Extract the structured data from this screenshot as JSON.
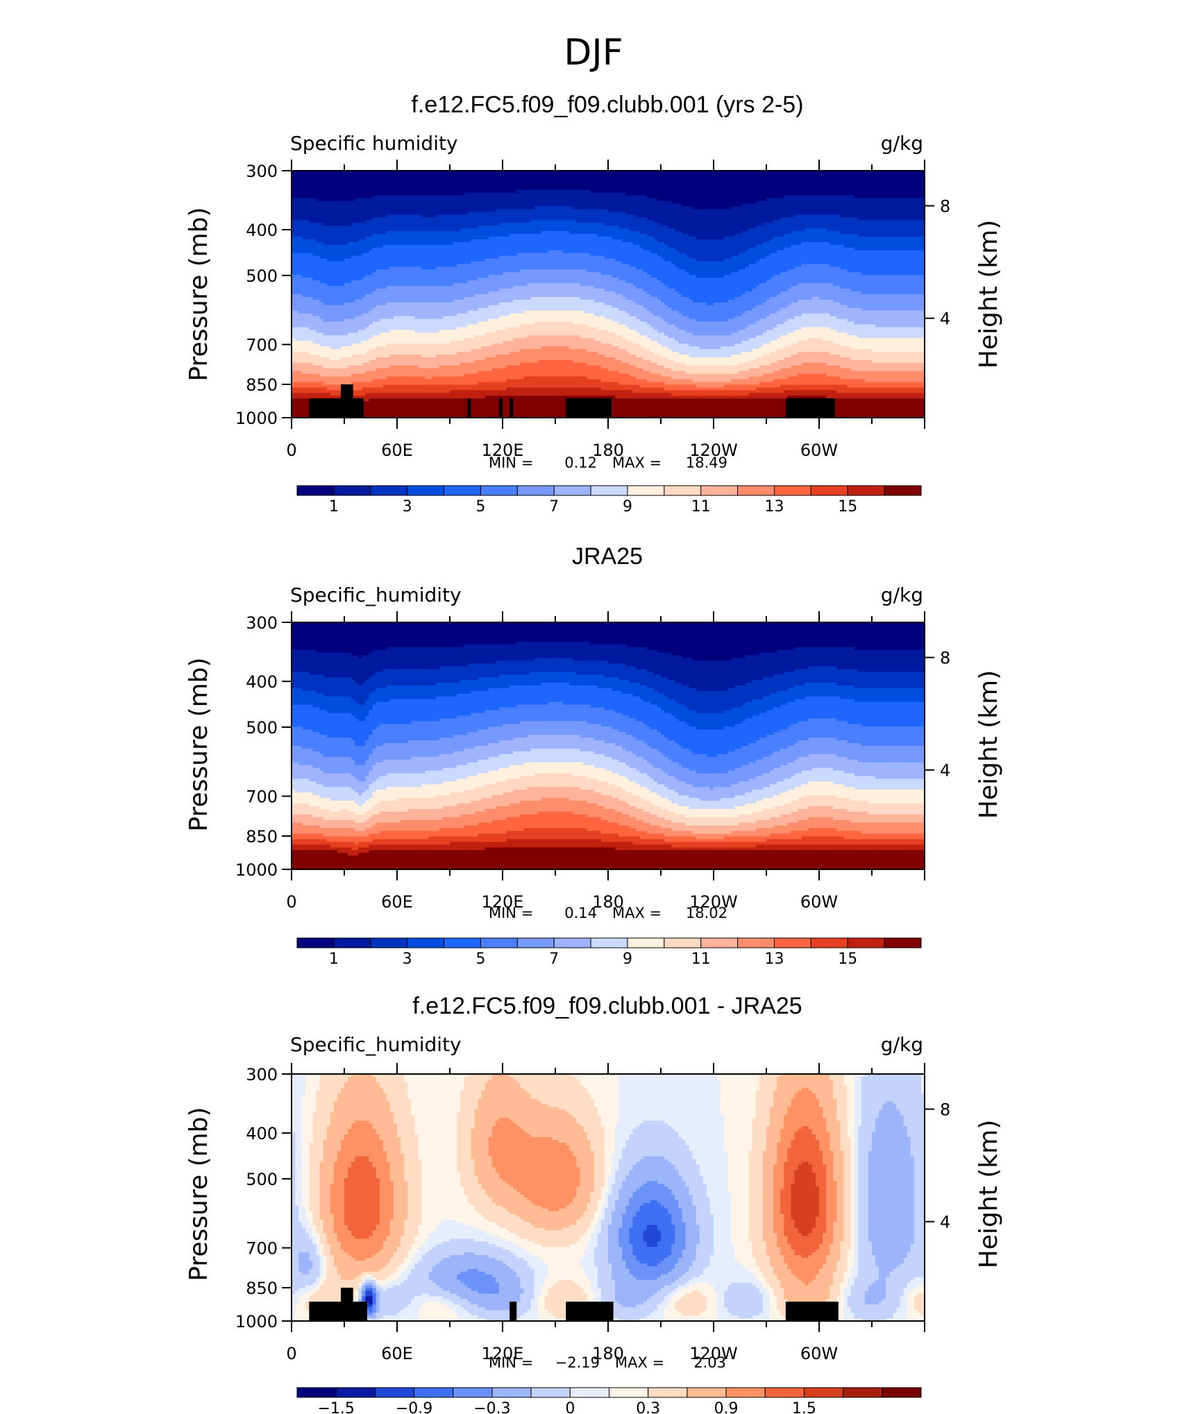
{
  "figure": {
    "season": "DJF",
    "colors": {
      "abs": [
        "#00007f",
        "#001a9f",
        "#0033bf",
        "#004ddf",
        "#1f66ff",
        "#4a80ff",
        "#7599ff",
        "#a0b3ff",
        "#cbd9ff",
        "#fff0dd",
        "#ffd9c4",
        "#ffb39a",
        "#ff8c6a",
        "#ff6640",
        "#e64020",
        "#bf2010",
        "#800000"
      ],
      "diff": [
        "#00007f",
        "#0a1aa3",
        "#2147d6",
        "#3f6ff2",
        "#6b93f7",
        "#9cb5fa",
        "#c4d3fb",
        "#e6eefd",
        "#fff4e8",
        "#ffdcc4",
        "#ffbb94",
        "#ff9263",
        "#f2643a",
        "#d6401f",
        "#a81f0c",
        "#7a0000"
      ]
    }
  },
  "chart_data": [
    {
      "type": "heatmap",
      "title": "f.e12.FC5.f09_f09.clubb.001 (yrs 2-5)",
      "left_string": "Specific humidity",
      "right_string": "g/kg",
      "ylabel": "Pressure (mb)",
      "ylabel_right": "Height (km)",
      "x_ticks": [
        "0",
        "60E",
        "120E",
        "180",
        "120W",
        "60W"
      ],
      "y_ticks": [
        "300",
        "400",
        "500",
        "700",
        "850",
        "1000"
      ],
      "height_ticks": [
        "8",
        "4"
      ],
      "ylim": [
        1000,
        300
      ],
      "xlim": [
        0,
        360
      ],
      "stats": {
        "min_label": "MIN =",
        "min": "0.12",
        "max_label": "MAX =",
        "max": "18.49"
      },
      "colorbar_labels": [
        "1",
        "3",
        "5",
        "7",
        "9",
        "11",
        "13",
        "15"
      ],
      "contour_levels": [
        0.5,
        1,
        1.5,
        2,
        3,
        4,
        5,
        6,
        7,
        8,
        9,
        10,
        11,
        12,
        13,
        14,
        15
      ],
      "topography": [
        {
          "x0": 10,
          "x1": 41,
          "p": 910
        },
        {
          "x0": 28,
          "x1": 35,
          "p": 850
        },
        {
          "x0": 100,
          "x1": 102,
          "p": 910
        },
        {
          "x0": 118,
          "x1": 120,
          "p": 910
        },
        {
          "x0": 124,
          "x1": 126,
          "p": 910
        },
        {
          "x0": 156,
          "x1": 182,
          "p": 910
        },
        {
          "x0": 281,
          "x1": 309,
          "p": 910
        }
      ]
    },
    {
      "type": "heatmap",
      "title": "JRA25",
      "left_string": "Specific_humidity",
      "right_string": "g/kg",
      "ylabel": "Pressure (mb)",
      "ylabel_right": "Height (km)",
      "x_ticks": [
        "0",
        "60E",
        "120E",
        "180",
        "120W",
        "60W"
      ],
      "y_ticks": [
        "300",
        "400",
        "500",
        "700",
        "850",
        "1000"
      ],
      "height_ticks": [
        "8",
        "4"
      ],
      "ylim": [
        1000,
        300
      ],
      "xlim": [
        0,
        360
      ],
      "stats": {
        "min_label": "MIN =",
        "min": "0.14",
        "max_label": "MAX =",
        "max": "18.02"
      },
      "colorbar_labels": [
        "1",
        "3",
        "5",
        "7",
        "9",
        "11",
        "13",
        "15"
      ],
      "contour_levels": [
        0.5,
        1,
        1.5,
        2,
        3,
        4,
        5,
        6,
        7,
        8,
        9,
        10,
        11,
        12,
        13,
        14,
        15
      ],
      "topography": []
    },
    {
      "type": "heatmap",
      "title": "f.e12.FC5.f09_f09.clubb.001 - JRA25",
      "left_string": "Specific_humidity",
      "right_string": "g/kg",
      "ylabel": "Pressure (mb)",
      "ylabel_right": "Height (km)",
      "x_ticks": [
        "0",
        "60E",
        "120E",
        "180",
        "120W",
        "60W"
      ],
      "y_ticks": [
        "300",
        "400",
        "500",
        "700",
        "850",
        "1000"
      ],
      "height_ticks": [
        "8",
        "4"
      ],
      "ylim": [
        1000,
        300
      ],
      "xlim": [
        0,
        360
      ],
      "stats": {
        "min_label": "MIN =",
        "min": "−2.19",
        "max_label": "MAX =",
        "max": "2.03"
      },
      "colorbar_labels": [
        "−1.5",
        "−0.9",
        "−0.3",
        "0",
        "0.3",
        "0.9",
        "1.5"
      ],
      "contour_levels": [
        -1.8,
        -1.5,
        -1.2,
        -0.9,
        -0.6,
        -0.3,
        -0.1,
        0,
        0.1,
        0.3,
        0.6,
        0.9,
        1.2,
        1.5,
        1.8
      ],
      "topography": [
        {
          "x0": 10,
          "x1": 43,
          "p": 910
        },
        {
          "x0": 28,
          "x1": 35,
          "p": 850
        },
        {
          "x0": 124,
          "x1": 128,
          "p": 910
        },
        {
          "x0": 156,
          "x1": 183,
          "p": 910
        },
        {
          "x0": 281,
          "x1": 311,
          "p": 910
        }
      ]
    }
  ]
}
